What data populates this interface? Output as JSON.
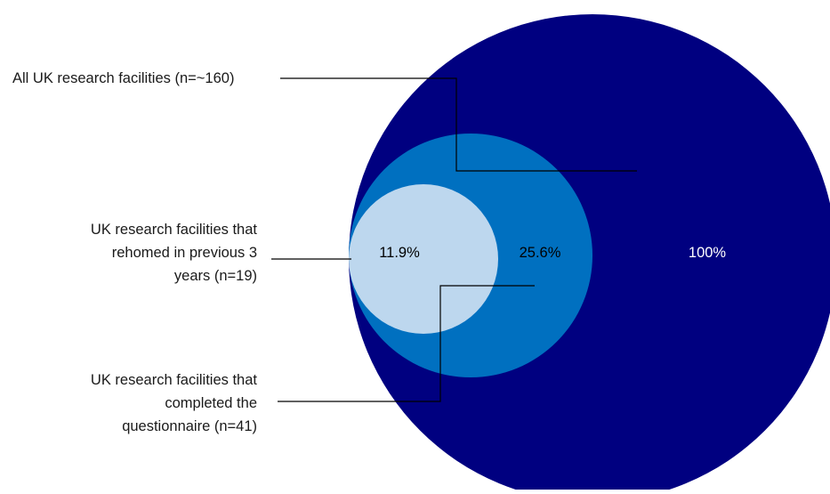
{
  "colors": {
    "outer_circle": "#000080",
    "middle_circle": "#0070c0",
    "inner_circle": "#bdd7ee",
    "leader_line": "#000000",
    "outer_value_text": "#ffffff",
    "inner_value_text": "#000000"
  },
  "sets": [
    {
      "name_lines": [
        "All UK research facilities (n=~160)"
      ],
      "value": "100%"
    },
    {
      "name_lines": [
        "UK research facilities that",
        "completed the",
        "questionnaire (n=41)"
      ],
      "value": "25.6%"
    },
    {
      "name_lines": [
        "UK research facilities that",
        "rehomed in previous 3",
        "years (n=19)"
      ],
      "value": "11.9%"
    }
  ]
}
